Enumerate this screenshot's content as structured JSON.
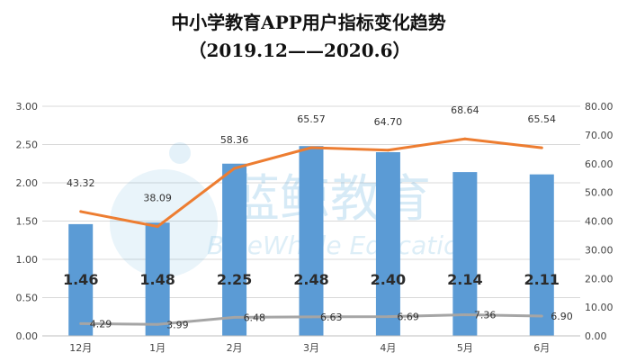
{
  "chart_data": {
    "type": "bar",
    "title": "中小学教育APP用户指标变化趋势",
    "subtitle": "（2019.12——2020.6）",
    "categories": [
      "12月",
      "1月",
      "2月",
      "3月",
      "4月",
      "5月",
      "6月"
    ],
    "y_left": {
      "min": 0,
      "max": 3,
      "ticks": [
        "0.00",
        "0.50",
        "1.00",
        "1.50",
        "2.00",
        "2.50",
        "3.00"
      ]
    },
    "y_right": {
      "min": 0,
      "max": 80,
      "ticks": [
        "0.00",
        "10.00",
        "20.00",
        "30.00",
        "40.00",
        "50.00",
        "60.00",
        "70.00",
        "80.00"
      ]
    },
    "grid": true,
    "series": [
      {
        "type": "bar",
        "axis": "left",
        "color": "#5b9bd5",
        "values": [
          1.46,
          1.48,
          2.25,
          2.48,
          2.4,
          2.14,
          2.11
        ],
        "labels": [
          "1.46",
          "1.48",
          "2.25",
          "2.48",
          "2.40",
          "2.14",
          "2.11"
        ]
      },
      {
        "type": "line",
        "axis": "right",
        "color": "#ed7d31",
        "values": [
          43.32,
          38.09,
          58.36,
          65.57,
          64.7,
          68.64,
          65.54
        ],
        "labels": [
          "43.32",
          "38.09",
          "58.36",
          "65.57",
          "64.70",
          "68.64",
          "65.54"
        ]
      },
      {
        "type": "line",
        "axis": "right",
        "color": "#a5a5a5",
        "values": [
          4.29,
          3.99,
          6.48,
          6.63,
          6.69,
          7.36,
          6.9
        ],
        "labels": [
          "4.29",
          "3.99",
          "6.48",
          "6.63",
          "6.69",
          "7.36",
          "6.90"
        ]
      }
    ]
  },
  "watermark": {
    "cn": "蓝鲸教育",
    "en": "BlueWhale Education"
  }
}
